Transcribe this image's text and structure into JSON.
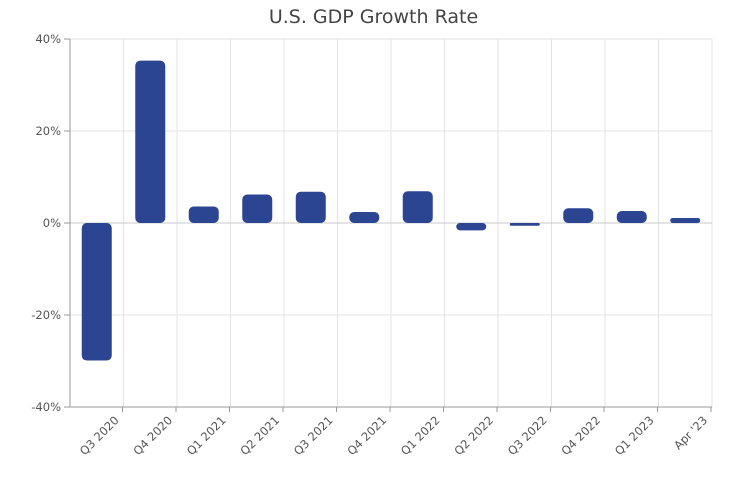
{
  "chart_data": {
    "type": "bar",
    "title": "U.S. GDP Growth Rate",
    "xlabel": "",
    "ylabel": "",
    "categories": [
      "Q3 2020",
      "Q4 2020",
      "Q1 2021",
      "Q2 2021",
      "Q3 2021",
      "Q4 2021",
      "Q1 2022",
      "Q2 2022",
      "Q3 2022",
      "Q4 2022",
      "Q1 2023",
      "Apr '23"
    ],
    "values": [
      -29.9,
      35.3,
      3.6,
      6.2,
      6.8,
      2.4,
      6.9,
      -1.6,
      -0.6,
      3.2,
      2.6,
      1.1
    ],
    "ylim": [
      -40,
      40
    ],
    "yticks": [
      "-40%",
      "-20%",
      "0%",
      "20%",
      "40%"
    ],
    "ytick_values": [
      -40,
      -20,
      0,
      20,
      40
    ],
    "grid": true,
    "legend": "none",
    "bar_color": "#2b4593"
  }
}
